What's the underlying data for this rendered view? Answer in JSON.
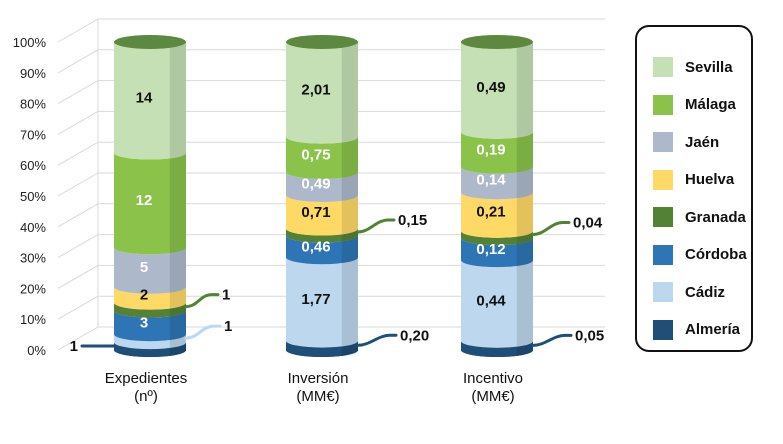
{
  "chart_data": {
    "type": "bar",
    "subtype": "stacked-percent-3d-cylinder",
    "categories": [
      "Expedientes\n(nº)",
      "Inversión\n(MM€)",
      "Incentivo\n(MM€)"
    ],
    "y_ticks": [
      "0%",
      "10%",
      "20%",
      "30%",
      "40%",
      "50%",
      "60%",
      "70%",
      "80%",
      "90%",
      "100%"
    ],
    "ylim": [
      0,
      100
    ],
    "series": [
      {
        "name": "Almería",
        "color": "#1f4e79",
        "values": [
          1,
          0.2,
          0.05
        ],
        "labels": [
          "1",
          "0,20",
          "0,05"
        ],
        "label_style": "callout",
        "label_color": "#111111"
      },
      {
        "name": "Cádiz",
        "color": "#bdd7ee",
        "values": [
          1,
          1.77,
          0.44
        ],
        "labels": [
          "1",
          "1,77",
          "0,44"
        ],
        "label_style": [
          "callout",
          "inside",
          "inside"
        ],
        "label_color": "#111111"
      },
      {
        "name": "Córdoba",
        "color": "#2e75b6",
        "values": [
          3,
          0.46,
          0.12
        ],
        "labels": [
          "3",
          "0,46",
          "0,12"
        ],
        "label_style": "inside",
        "label_color": "#ffffff"
      },
      {
        "name": "Granada",
        "color": "#548235",
        "values": [
          1,
          0.15,
          0.04
        ],
        "labels": [
          "1",
          "0,15",
          "0,04"
        ],
        "label_style": "callout",
        "label_color": "#111111"
      },
      {
        "name": "Huelva",
        "color": "#ffd966",
        "values": [
          2,
          0.71,
          0.21
        ],
        "labels": [
          "2",
          "0,71",
          "0,21"
        ],
        "label_style": "inside",
        "label_color": "#111111"
      },
      {
        "name": "Jaén",
        "color": "#adb9ca",
        "values": [
          5,
          0.49,
          0.14
        ],
        "labels": [
          "5",
          "0,49",
          "0,14"
        ],
        "label_style": "inside",
        "label_color": "#ffffff"
      },
      {
        "name": "Málaga",
        "color": "#8bc34a",
        "values": [
          12,
          0.75,
          0.19
        ],
        "labels": [
          "12",
          "0,75",
          "0,19"
        ],
        "label_style": "inside",
        "label_color": "#ffffff"
      },
      {
        "name": "Sevilla",
        "color": "#c5e0b4",
        "values": [
          14,
          2.01,
          0.49
        ],
        "labels": [
          "14",
          "2,01",
          "0,49"
        ],
        "label_style": "inside",
        "label_color": "#111111"
      }
    ],
    "legend": {
      "position": "right",
      "order": [
        "Sevilla",
        "Málaga",
        "Jaén",
        "Huelva",
        "Granada",
        "Córdoba",
        "Cádiz",
        "Almería"
      ]
    },
    "grid": true
  }
}
